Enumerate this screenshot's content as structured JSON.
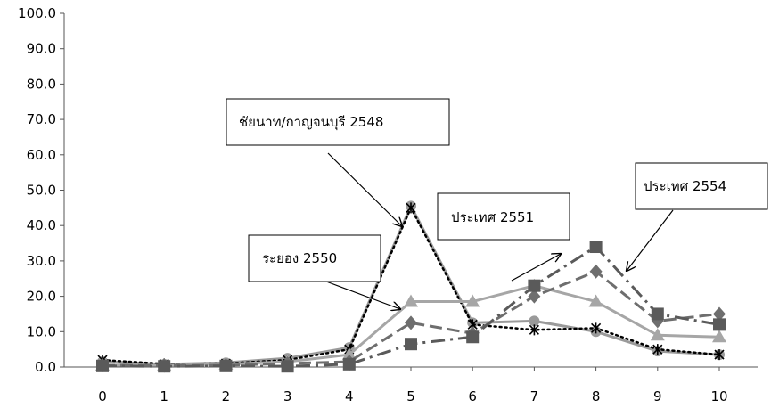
{
  "chart_data": {
    "type": "line",
    "x": [
      0,
      1,
      2,
      3,
      4,
      5,
      6,
      7,
      8,
      9,
      10
    ],
    "ylim": [
      0,
      100
    ],
    "y_ticks": [
      "0.0",
      "10.0",
      "20.0",
      "30.0",
      "40.0",
      "50.0",
      "60.0",
      "70.0",
      "80.0",
      "90.0",
      "100.0"
    ],
    "x_ticks": [
      "0",
      "1",
      "2",
      "3",
      "4",
      "5",
      "6",
      "7",
      "8",
      "9",
      "10"
    ],
    "grid": false,
    "series": [
      {
        "values": [
          1.5,
          0.8,
          1.2,
          2.5,
          5.5,
          45.5,
          12.5,
          13.0,
          10.0,
          4.5,
          3.5
        ],
        "color": "#9a9a9a",
        "marker": "circle",
        "style": "solid"
      },
      {
        "values": [
          2.0,
          0.9,
          1.0,
          2.0,
          5.0,
          45.0,
          12.0,
          10.5,
          11.0,
          5.0,
          3.5
        ],
        "color": "#000000",
        "marker": "star",
        "style": "dotted"
      },
      {
        "values": [
          0.5,
          0.5,
          0.8,
          1.5,
          3.5,
          18.5,
          18.5,
          23.0,
          18.5,
          9.0,
          8.5
        ],
        "color": "#a6a6a6",
        "marker": "triangle",
        "style": "solid"
      },
      {
        "values": [
          0.5,
          0.4,
          0.5,
          1.0,
          1.5,
          12.5,
          9.5,
          20.0,
          27.0,
          13.0,
          15.0
        ],
        "color": "#6e6e6e",
        "marker": "diamond",
        "style": "dashed"
      },
      {
        "values": [
          0.3,
          0.2,
          0.3,
          0.2,
          0.8,
          6.5,
          8.5,
          23.0,
          34.0,
          15.0,
          12.0
        ],
        "color": "#5a5a5a",
        "marker": "square",
        "style": "dashdot"
      }
    ],
    "annotations": [
      {
        "text": "ชัยนาท/กาญจนบุรี 2548"
      },
      {
        "text": "ระยอง 2550"
      },
      {
        "text": "ประเทศ 2551"
      },
      {
        "text": "ประเทศ 2554"
      }
    ]
  }
}
